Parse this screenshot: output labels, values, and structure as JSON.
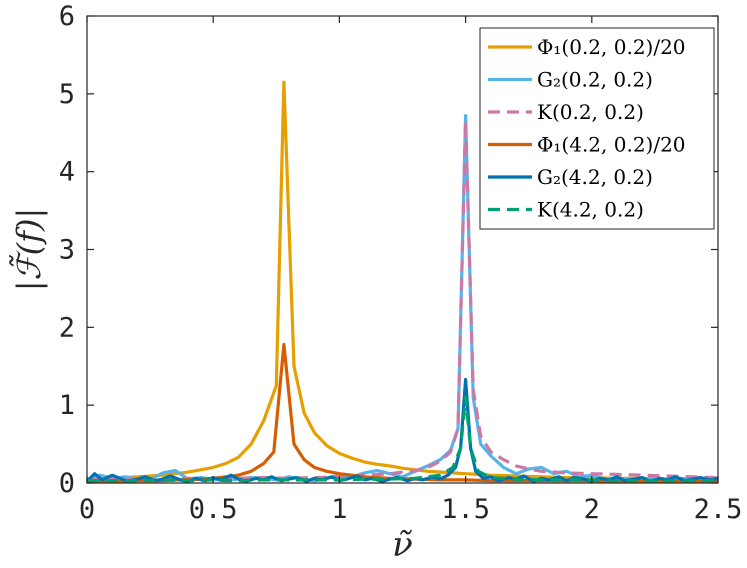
{
  "chart_data": {
    "type": "line",
    "title": "",
    "xlabel": "ν̃",
    "ylabel": "|ℱ̃(f)|",
    "xlim": [
      0,
      2.5
    ],
    "ylim": [
      0,
      6
    ],
    "xticks": [
      0,
      0.5,
      1,
      1.5,
      2,
      2.5
    ],
    "xtick_labels": [
      "0",
      "0.5",
      "1",
      "1.5",
      "2",
      "2.5"
    ],
    "yticks": [
      0,
      1,
      2,
      3,
      4,
      5,
      6
    ],
    "ytick_labels": [
      "0",
      "1",
      "2",
      "3",
      "4",
      "5",
      "6"
    ],
    "grid": false,
    "legend_position": "top-right",
    "series": [
      {
        "name": "Φ₁(0.2, 0.2)/20",
        "color": "#E69F00",
        "dash": "solid",
        "x": [
          0,
          0.05,
          0.1,
          0.15,
          0.2,
          0.25,
          0.3,
          0.35,
          0.4,
          0.45,
          0.5,
          0.55,
          0.6,
          0.65,
          0.7,
          0.75,
          0.78,
          0.82,
          0.86,
          0.9,
          0.95,
          1.0,
          1.05,
          1.1,
          1.15,
          1.2,
          1.25,
          1.3,
          1.35,
          1.4,
          1.45,
          1.5,
          1.55,
          1.6,
          1.7,
          1.8,
          1.9,
          2.0,
          2.1,
          2.2,
          2.3,
          2.4,
          2.5
        ],
        "y": [
          0.05,
          0.05,
          0.06,
          0.07,
          0.08,
          0.09,
          0.1,
          0.12,
          0.14,
          0.17,
          0.2,
          0.25,
          0.33,
          0.5,
          0.8,
          1.25,
          5.15,
          1.5,
          0.9,
          0.65,
          0.48,
          0.38,
          0.32,
          0.27,
          0.24,
          0.22,
          0.19,
          0.17,
          0.15,
          0.14,
          0.13,
          0.12,
          0.11,
          0.1,
          0.09,
          0.08,
          0.07,
          0.07,
          0.06,
          0.06,
          0.05,
          0.05,
          0.05
        ]
      },
      {
        "name": "G₂(0.2, 0.2)",
        "color": "#56B4E9",
        "dash": "solid",
        "x": [
          0,
          0.05,
          0.1,
          0.15,
          0.2,
          0.25,
          0.3,
          0.35,
          0.4,
          0.45,
          0.5,
          0.55,
          0.6,
          0.65,
          0.7,
          0.75,
          0.8,
          0.85,
          0.9,
          0.95,
          1.0,
          1.05,
          1.1,
          1.15,
          1.2,
          1.25,
          1.3,
          1.35,
          1.4,
          1.44,
          1.47,
          1.5,
          1.53,
          1.56,
          1.6,
          1.65,
          1.7,
          1.75,
          1.8,
          1.85,
          1.9,
          1.95,
          2.0,
          2.05,
          2.1,
          2.15,
          2.2,
          2.25,
          2.3,
          2.35,
          2.4,
          2.45,
          2.5
        ],
        "y": [
          0.05,
          0.1,
          0.06,
          0.08,
          0.05,
          0.04,
          0.13,
          0.16,
          0.05,
          0.07,
          0.05,
          0.03,
          0.05,
          0.07,
          0.06,
          0.04,
          0.08,
          0.05,
          0.03,
          0.06,
          0.1,
          0.08,
          0.13,
          0.16,
          0.12,
          0.08,
          0.15,
          0.22,
          0.3,
          0.42,
          0.7,
          4.72,
          1.1,
          0.5,
          0.35,
          0.2,
          0.12,
          0.18,
          0.2,
          0.12,
          0.15,
          0.08,
          0.1,
          0.05,
          0.07,
          0.04,
          0.06,
          0.05,
          0.04,
          0.06,
          0.05,
          0.04,
          0.05
        ]
      },
      {
        "name": "K(0.2, 0.2)",
        "color": "#CC79A7",
        "dash": "dashed",
        "x": [
          0,
          0.1,
          0.2,
          0.3,
          0.4,
          0.5,
          0.6,
          0.7,
          0.8,
          0.9,
          1.0,
          1.1,
          1.2,
          1.3,
          1.35,
          1.4,
          1.44,
          1.47,
          1.5,
          1.53,
          1.56,
          1.6,
          1.65,
          1.7,
          1.75,
          1.8,
          1.9,
          2.0,
          2.1,
          2.2,
          2.3,
          2.4,
          2.5
        ],
        "y": [
          0.04,
          0.05,
          0.05,
          0.06,
          0.06,
          0.05,
          0.06,
          0.07,
          0.06,
          0.07,
          0.08,
          0.1,
          0.12,
          0.16,
          0.2,
          0.28,
          0.4,
          0.7,
          4.65,
          1.2,
          0.6,
          0.4,
          0.3,
          0.22,
          0.18,
          0.15,
          0.13,
          0.12,
          0.11,
          0.1,
          0.09,
          0.08,
          0.07
        ]
      },
      {
        "name": "Φ₁(4.2, 0.2)/20",
        "color": "#D55E00",
        "dash": "solid",
        "x": [
          0,
          0.05,
          0.1,
          0.15,
          0.2,
          0.25,
          0.3,
          0.35,
          0.4,
          0.45,
          0.5,
          0.55,
          0.6,
          0.65,
          0.7,
          0.74,
          0.78,
          0.82,
          0.86,
          0.9,
          0.95,
          1.0,
          1.05,
          1.1,
          1.15,
          1.2,
          1.3,
          1.4,
          1.5,
          1.6,
          1.7,
          1.8,
          1.9,
          2.0,
          2.1,
          2.2,
          2.3,
          2.4,
          2.5
        ],
        "y": [
          0.01,
          0.02,
          0.02,
          0.02,
          0.03,
          0.03,
          0.03,
          0.04,
          0.04,
          0.05,
          0.06,
          0.08,
          0.1,
          0.15,
          0.25,
          0.4,
          1.78,
          0.5,
          0.3,
          0.2,
          0.15,
          0.12,
          0.1,
          0.08,
          0.07,
          0.06,
          0.05,
          0.04,
          0.04,
          0.03,
          0.03,
          0.03,
          0.03,
          0.03,
          0.02,
          0.02,
          0.02,
          0.02,
          0.02
        ]
      },
      {
        "name": "G₂(4.2, 0.2)",
        "color": "#0072B2",
        "dash": "solid",
        "x": [
          0,
          0.03,
          0.06,
          0.1,
          0.13,
          0.16,
          0.2,
          0.23,
          0.27,
          0.3,
          0.33,
          0.37,
          0.4,
          0.43,
          0.47,
          0.5,
          0.53,
          0.57,
          0.6,
          0.63,
          0.67,
          0.7,
          0.73,
          0.77,
          0.8,
          0.83,
          0.87,
          0.9,
          0.93,
          0.97,
          1.0,
          1.03,
          1.07,
          1.1,
          1.13,
          1.17,
          1.2,
          1.23,
          1.27,
          1.3,
          1.33,
          1.37,
          1.4,
          1.43,
          1.46,
          1.48,
          1.5,
          1.52,
          1.54,
          1.57,
          1.6,
          1.63,
          1.67,
          1.7,
          1.73,
          1.77,
          1.8,
          1.83,
          1.87,
          1.9,
          1.93,
          1.97,
          2.0,
          2.03,
          2.07,
          2.1,
          2.13,
          2.17,
          2.2,
          2.23,
          2.27,
          2.3,
          2.33,
          2.37,
          2.4,
          2.43,
          2.47,
          2.5
        ],
        "y": [
          0.02,
          0.12,
          0.04,
          0.1,
          0.06,
          0.02,
          0.05,
          0.08,
          0.03,
          0.05,
          0.09,
          0.04,
          0.02,
          0.06,
          0.03,
          0.07,
          0.04,
          0.1,
          0.05,
          0.02,
          0.06,
          0.04,
          0.08,
          0.03,
          0.05,
          0.07,
          0.02,
          0.06,
          0.04,
          0.08,
          0.03,
          0.05,
          0.09,
          0.04,
          0.06,
          0.02,
          0.05,
          0.07,
          0.03,
          0.06,
          0.04,
          0.08,
          0.05,
          0.1,
          0.2,
          0.45,
          1.33,
          0.45,
          0.15,
          0.06,
          0.08,
          0.03,
          0.07,
          0.05,
          0.09,
          0.02,
          0.06,
          0.04,
          0.08,
          0.03,
          0.07,
          0.05,
          0.02,
          0.06,
          0.04,
          0.08,
          0.03,
          0.05,
          0.07,
          0.02,
          0.06,
          0.04,
          0.08,
          0.03,
          0.05,
          0.07,
          0.04,
          0.06
        ]
      },
      {
        "name": "K(4.2, 0.2)",
        "color": "#009E73",
        "dash": "dashed",
        "x": [
          0,
          0.1,
          0.2,
          0.3,
          0.4,
          0.5,
          0.6,
          0.7,
          0.8,
          0.9,
          1.0,
          1.1,
          1.2,
          1.3,
          1.4,
          1.45,
          1.48,
          1.5,
          1.52,
          1.55,
          1.6,
          1.7,
          1.8,
          1.9,
          2.0,
          2.1,
          2.2,
          2.3,
          2.4,
          2.5
        ],
        "y": [
          0.03,
          0.03,
          0.03,
          0.04,
          0.03,
          0.04,
          0.03,
          0.04,
          0.04,
          0.04,
          0.04,
          0.05,
          0.05,
          0.06,
          0.1,
          0.2,
          0.45,
          1.1,
          0.45,
          0.15,
          0.07,
          0.05,
          0.04,
          0.04,
          0.04,
          0.03,
          0.03,
          0.03,
          0.03,
          0.03
        ]
      }
    ]
  }
}
